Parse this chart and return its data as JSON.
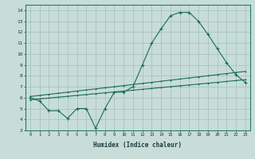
{
  "xlabel": "Humidex (Indice chaleur)",
  "xlim": [
    -0.5,
    23.5
  ],
  "ylim": [
    3,
    14.5
  ],
  "bg_color": "#c8ddd8",
  "grid_color": "#a0c0bc",
  "line_color": "#1a6b5a",
  "line1_x": [
    0,
    1,
    2,
    3,
    4,
    5,
    6,
    7,
    8,
    9,
    10,
    11,
    12,
    13,
    14,
    15,
    16,
    17,
    18,
    19,
    20,
    21,
    22,
    23
  ],
  "line1_y": [
    6.0,
    5.7,
    4.8,
    4.8,
    4.1,
    5.0,
    5.0,
    3.2,
    5.0,
    6.5,
    6.5,
    7.0,
    9.0,
    11.0,
    12.3,
    13.5,
    13.8,
    13.8,
    13.0,
    11.8,
    10.5,
    9.2,
    8.1,
    7.4
  ],
  "line2_x": [
    0,
    1,
    2,
    3,
    4,
    5,
    6,
    7,
    8,
    9,
    10,
    11,
    12,
    13,
    14,
    15,
    16,
    17,
    18,
    19,
    20,
    21,
    22,
    23
  ],
  "line2_y": [
    5.8,
    5.88,
    5.96,
    6.04,
    6.12,
    6.2,
    6.28,
    6.36,
    6.44,
    6.52,
    6.6,
    6.68,
    6.76,
    6.84,
    6.92,
    7.0,
    7.08,
    7.16,
    7.24,
    7.32,
    7.4,
    7.48,
    7.56,
    7.64
  ],
  "line3_x": [
    0,
    1,
    2,
    3,
    4,
    5,
    6,
    7,
    8,
    9,
    10,
    11,
    12,
    13,
    14,
    15,
    16,
    17,
    18,
    19,
    20,
    21,
    22,
    23
  ],
  "line3_y": [
    6.1,
    6.2,
    6.3,
    6.4,
    6.5,
    6.6,
    6.7,
    6.8,
    6.9,
    7.0,
    7.1,
    7.2,
    7.3,
    7.4,
    7.5,
    7.6,
    7.7,
    7.8,
    7.9,
    8.0,
    8.1,
    8.2,
    8.3,
    8.4
  ]
}
